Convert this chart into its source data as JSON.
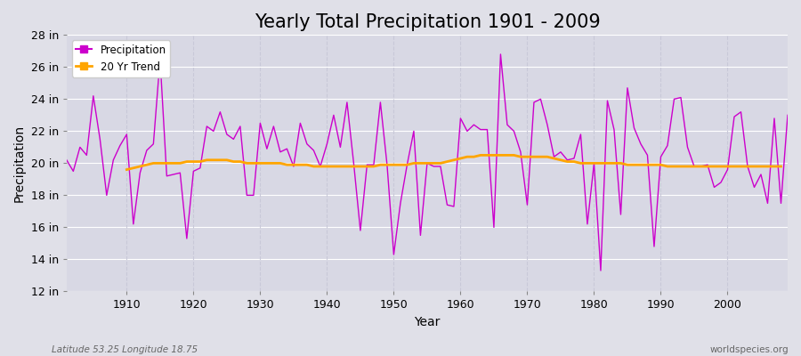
{
  "title": "Yearly Total Precipitation 1901 - 2009",
  "xlabel": "Year",
  "ylabel": "Precipitation",
  "years": [
    1901,
    1902,
    1903,
    1904,
    1905,
    1906,
    1907,
    1908,
    1909,
    1910,
    1911,
    1912,
    1913,
    1914,
    1915,
    1916,
    1917,
    1918,
    1919,
    1920,
    1921,
    1922,
    1923,
    1924,
    1925,
    1926,
    1927,
    1928,
    1929,
    1930,
    1931,
    1932,
    1933,
    1934,
    1935,
    1936,
    1937,
    1938,
    1939,
    1940,
    1941,
    1942,
    1943,
    1944,
    1945,
    1946,
    1947,
    1948,
    1949,
    1950,
    1951,
    1952,
    1953,
    1954,
    1955,
    1956,
    1957,
    1958,
    1959,
    1960,
    1961,
    1962,
    1963,
    1964,
    1965,
    1966,
    1967,
    1968,
    1969,
    1970,
    1971,
    1972,
    1973,
    1974,
    1975,
    1976,
    1977,
    1978,
    1979,
    1980,
    1981,
    1982,
    1983,
    1984,
    1985,
    1986,
    1987,
    1988,
    1989,
    1990,
    1991,
    1992,
    1993,
    1994,
    1995,
    1996,
    1997,
    1998,
    1999,
    2000,
    2001,
    2002,
    2003,
    2004,
    2005,
    2006,
    2007,
    2008,
    2009
  ],
  "precipitation": [
    20.2,
    19.5,
    21.0,
    20.5,
    24.2,
    21.5,
    18.0,
    20.2,
    21.1,
    21.8,
    16.2,
    19.4,
    20.8,
    21.2,
    26.5,
    19.2,
    19.3,
    19.4,
    15.3,
    19.5,
    19.7,
    22.3,
    22.0,
    23.2,
    21.8,
    21.5,
    22.3,
    18.0,
    18.0,
    22.5,
    20.9,
    22.3,
    20.7,
    20.9,
    19.8,
    22.5,
    21.2,
    20.8,
    19.8,
    21.2,
    23.0,
    21.0,
    23.8,
    20.0,
    15.8,
    19.9,
    19.9,
    23.8,
    19.9,
    14.3,
    17.5,
    19.9,
    22.0,
    15.5,
    20.0,
    19.8,
    19.8,
    17.4,
    17.3,
    22.8,
    22.0,
    22.4,
    22.1,
    22.1,
    16.0,
    26.8,
    22.4,
    22.0,
    20.7,
    17.4,
    23.8,
    24.0,
    22.4,
    20.4,
    20.7,
    20.2,
    20.3,
    21.8,
    16.2,
    20.0,
    13.3,
    23.9,
    22.1,
    16.8,
    24.7,
    22.2,
    21.2,
    20.5,
    14.8,
    20.4,
    21.1,
    24.0,
    24.1,
    21.0,
    19.8,
    19.8,
    19.9,
    18.5,
    18.8,
    19.6,
    22.9,
    23.2,
    19.8,
    18.5,
    19.3,
    17.5,
    22.8,
    17.5,
    23.0
  ],
  "trend_start_year": 1910,
  "trend": [
    19.6,
    19.7,
    19.8,
    19.9,
    20.0,
    20.0,
    20.0,
    20.0,
    20.0,
    20.1,
    20.1,
    20.1,
    20.2,
    20.2,
    20.2,
    20.2,
    20.1,
    20.1,
    20.0,
    20.0,
    20.0,
    20.0,
    20.0,
    20.0,
    19.9,
    19.9,
    19.9,
    19.9,
    19.8,
    19.8,
    19.8,
    19.8,
    19.8,
    19.8,
    19.8,
    19.8,
    19.8,
    19.8,
    19.9,
    19.9,
    19.9,
    19.9,
    19.9,
    20.0,
    20.0,
    20.0,
    20.0,
    20.0,
    20.1,
    20.2,
    20.3,
    20.4,
    20.4,
    20.5,
    20.5,
    20.5,
    20.5,
    20.5,
    20.5,
    20.4,
    20.4,
    20.4,
    20.4,
    20.4,
    20.3,
    20.2,
    20.1,
    20.1,
    20.0,
    20.0,
    20.0,
    20.0,
    20.0,
    20.0,
    20.0,
    19.9,
    19.9,
    19.9,
    19.9,
    19.9,
    19.9,
    19.8,
    19.8,
    19.8,
    19.8,
    19.8,
    19.8,
    19.8,
    19.8,
    19.8,
    19.8,
    19.8,
    19.8,
    19.8,
    19.8,
    19.8,
    19.8,
    19.8,
    19.8
  ],
  "precip_color": "#CC00CC",
  "trend_color": "#FFA500",
  "fig_bg_color": "#E0E0E8",
  "plot_bg_color": "#D8D8E4",
  "grid_color_h": "#FFFFFF",
  "grid_color_v": "#C8C8D8",
  "title_fontsize": 15,
  "axis_label_fontsize": 10,
  "tick_label_fontsize": 9,
  "ylim": [
    12,
    28
  ],
  "yticks": [
    12,
    14,
    16,
    18,
    20,
    22,
    24,
    26,
    28
  ],
  "ytick_labels": [
    "12 in",
    "14 in",
    "16 in",
    "18 in",
    "20 in",
    "22 in",
    "24 in",
    "26 in",
    "28 in"
  ],
  "xticks": [
    1910,
    1920,
    1930,
    1940,
    1950,
    1960,
    1970,
    1980,
    1990,
    2000
  ],
  "footer_left": "Latitude 53.25 Longitude 18.75",
  "footer_right": "worldspecies.org",
  "legend_labels": [
    "Precipitation",
    "20 Yr Trend"
  ]
}
